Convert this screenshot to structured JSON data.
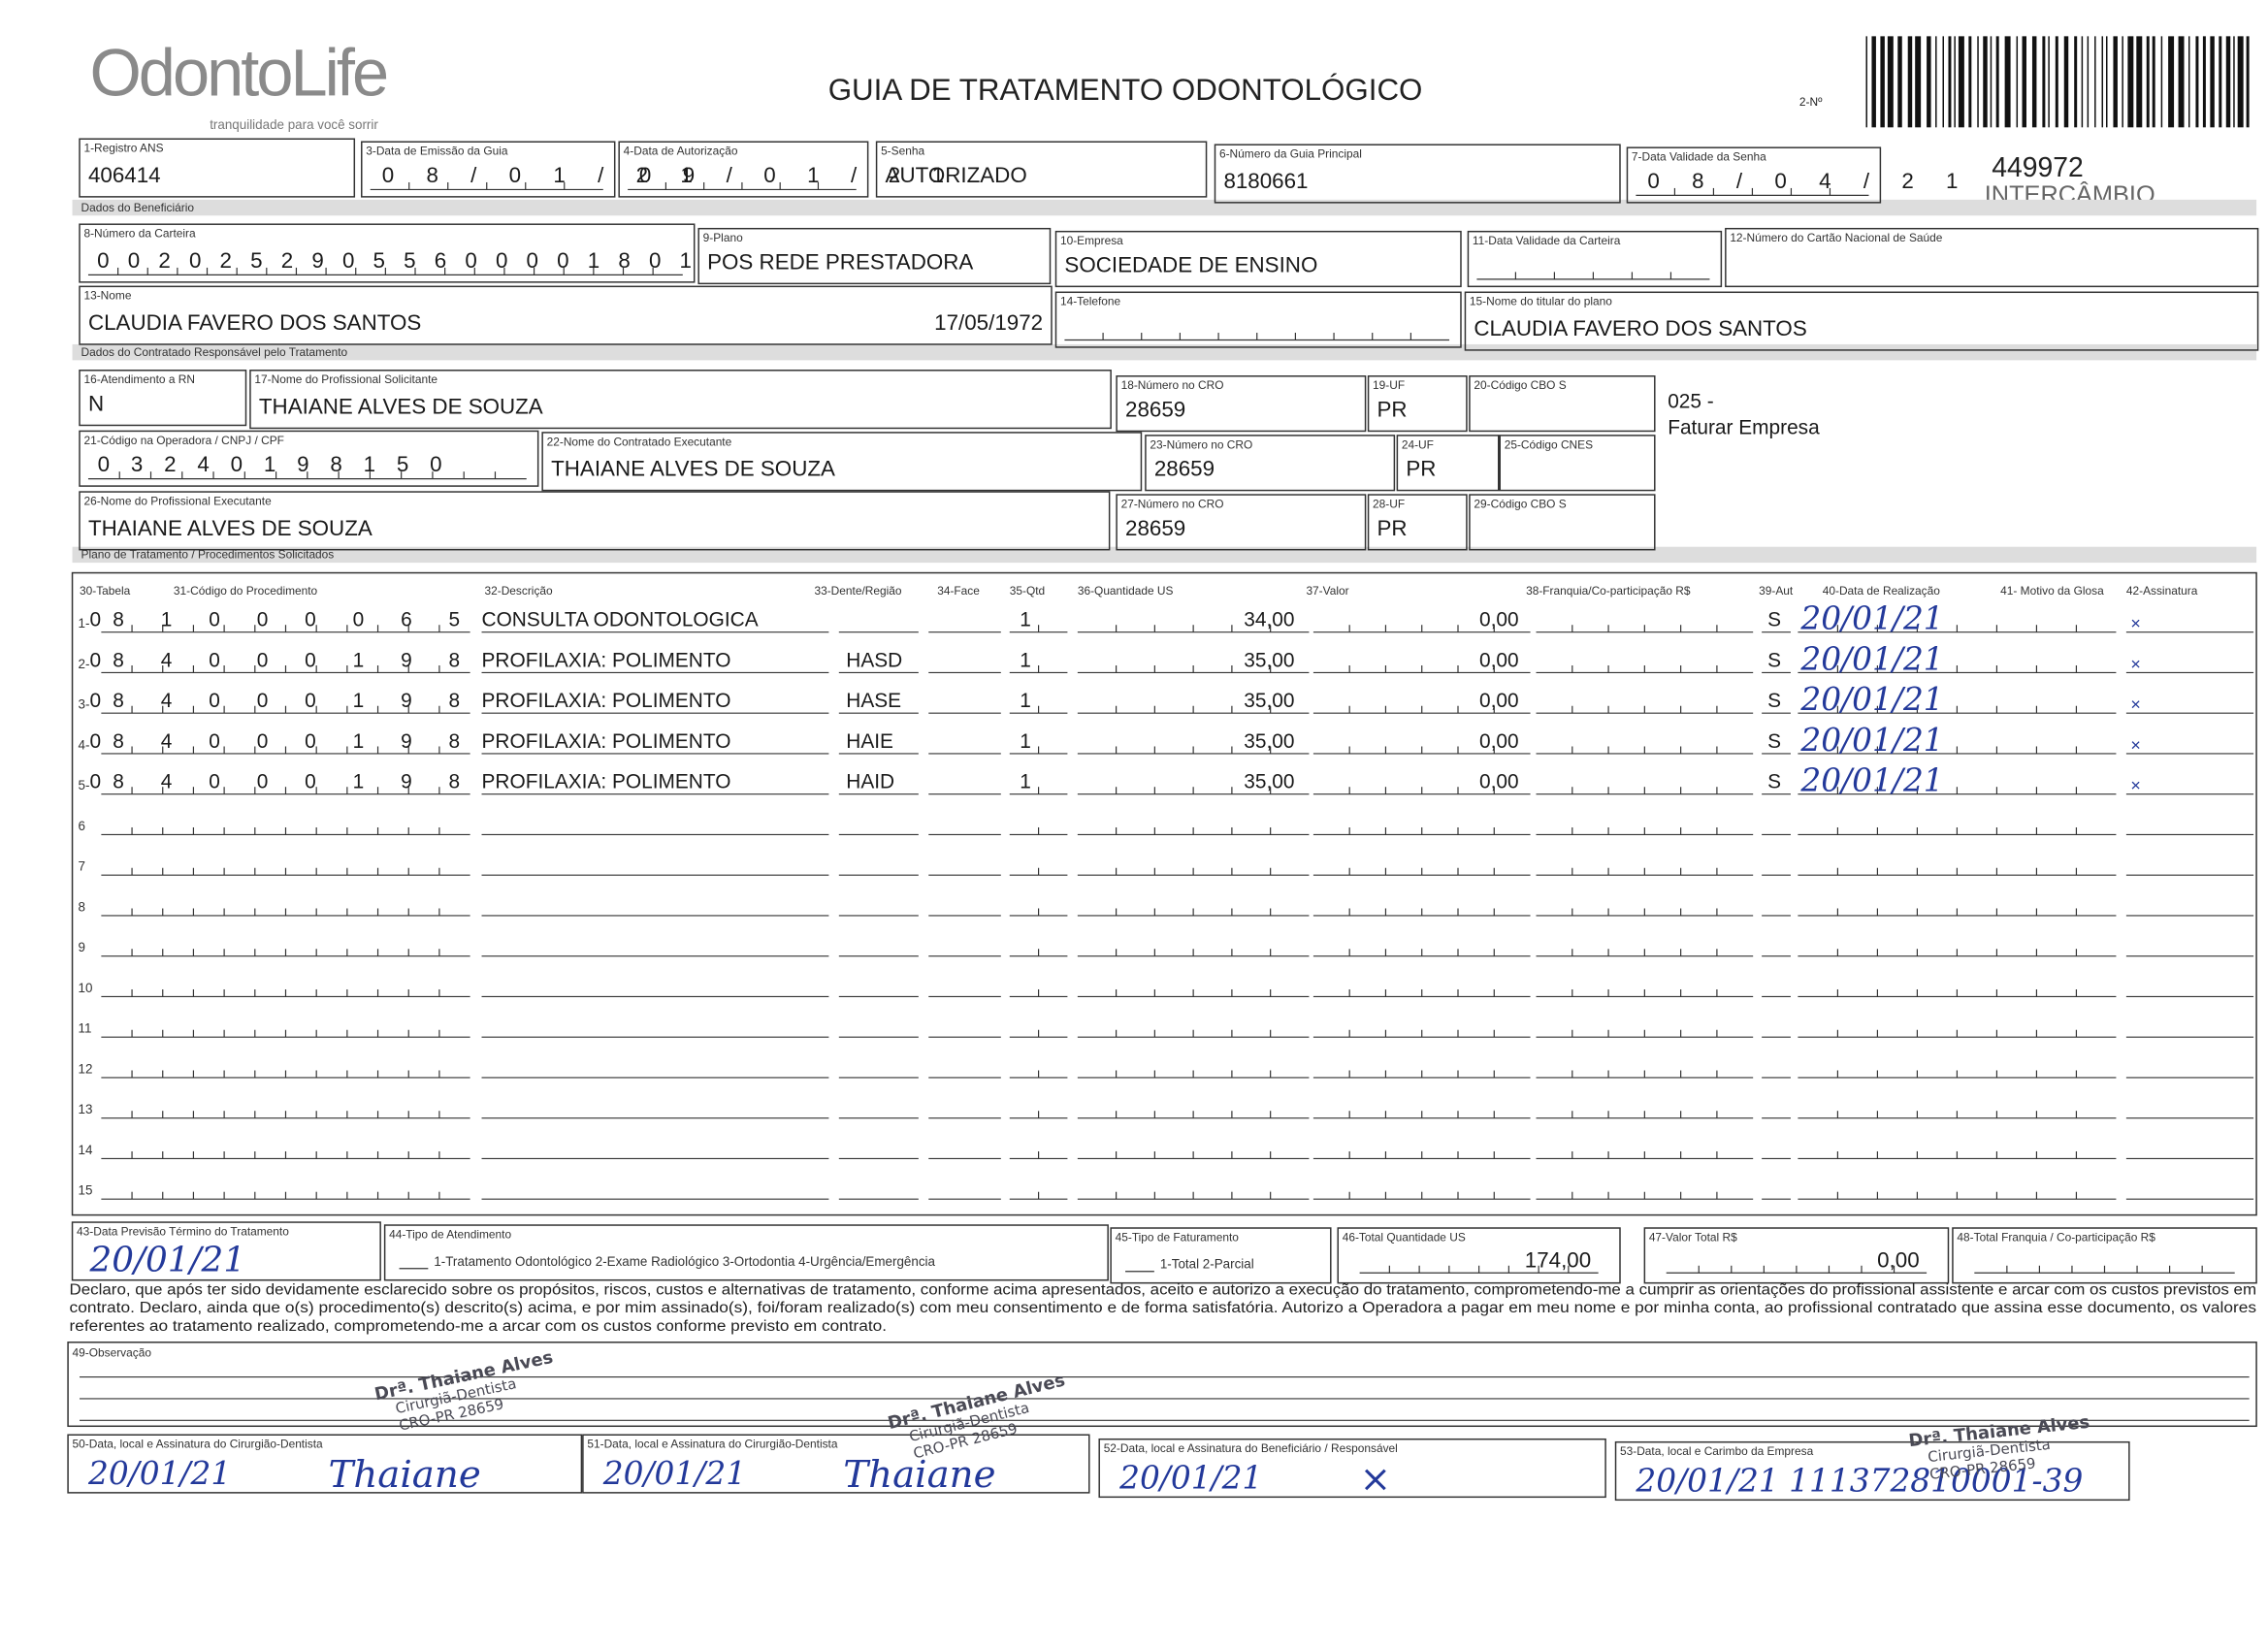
{
  "header": {
    "logo": "OdontoLife",
    "tagline": "tranquilidade para você sorrir",
    "title": "GUIA DE TRATAMENTO ODONTOLÓGICO",
    "number_label": "2-Nº",
    "guide_number": "449972",
    "exchange": "INTERCÂMBIO"
  },
  "sections": [
    "Dados do Beneficiário",
    "Dados do Contratado Responsável pelo Tratamento",
    "Plano de Tratamento / Procedimentos Solicitados"
  ],
  "fields": [
    {
      "label": "1-Registro ANS",
      "value": "406414"
    },
    {
      "label": "3-Data de Emissão da Guia",
      "value": "08/01/21"
    },
    {
      "label": "4-Data de Autorização",
      "value": "09/01/21"
    },
    {
      "label": "5-Senha",
      "value": "AUTORIZADO"
    },
    {
      "label": "6-Número da Guia Principal",
      "value": "8180661"
    },
    {
      "label": "7-Data Validade da Senha",
      "value": "08/04/21"
    },
    {
      "label": "8-Número da Carteira",
      "value": "00202529055600001801"
    },
    {
      "label": "9-Plano",
      "value": "POS REDE PRESTADORA"
    },
    {
      "label": "10-Empresa",
      "value": "SOCIEDADE DE ENSINO"
    },
    {
      "label": "11-Data Validade da Carteira"
    },
    {
      "label": "12-Número do Cartão Nacional de Saúde"
    },
    {
      "label": "13-Nome",
      "value": "CLAUDIA FAVERO DOS SANTOS",
      "birth_date": "17/05/1972"
    },
    {
      "label": "14-Telefone"
    },
    {
      "label": "15-Nome do titular do plano",
      "value": "CLAUDIA FAVERO DOS SANTOS"
    },
    {
      "label": "16-Atendimento a RN",
      "value": "N"
    },
    {
      "label": "17-Nome do Profissional Solicitante",
      "value": "THAIANE ALVES DE SOUZA"
    },
    {
      "label": "18-Número no CRO",
      "value": "28659"
    },
    {
      "label": "19-UF",
      "value": "PR"
    },
    {
      "label": "20-Código CBO S"
    },
    {
      "label": "21-Código na Operadora / CNPJ / CPF",
      "value": "03240198150"
    },
    {
      "label": "22-Nome do Contratado Executante",
      "value": "THAIANE ALVES DE SOUZA"
    },
    {
      "label": "23-Número no CRO",
      "value": "28659"
    },
    {
      "label": "24-UF",
      "value": "PR"
    },
    {
      "label": "25-Código CNES"
    },
    {
      "label": "26-Nome do Profissional Executante",
      "value": "THAIANE ALVES DE SOUZA"
    },
    {
      "label": "27-Número no CRO",
      "value": "28659"
    },
    {
      "label": "28-UF",
      "value": "PR"
    },
    {
      "label": "29-Código CBO S"
    }
  ],
  "side_note": [
    "025 -",
    "Faturar Empresa"
  ],
  "procedures": {
    "columns": [
      "30-Tabela",
      "31-Código do Procedimento",
      "32-Descrição",
      "33-Dente/Região",
      "34-Face",
      "35-Qtd",
      "36-Quantidade US",
      "37-Valor",
      "38-Franquia/Co-participação R$",
      "39-Aut",
      "40-Data de Realização",
      "41- Motivo da Glosa",
      "42-Assinatura"
    ],
    "rows": [
      {
        "number": "1-",
        "table": "0",
        "code": "81000065",
        "description": "CONSULTA ODONTOLOGICA",
        "qty": "1",
        "us": "34,00",
        "value": "0,00",
        "aut": "S",
        "date": "20/01/21",
        "signature": "×"
      },
      {
        "number": "2-",
        "table": "0",
        "code": "84000198",
        "description": "PROFILAXIA: POLIMENTO",
        "tooth": "HASD",
        "qty": "1",
        "us": "35,00",
        "value": "0,00",
        "aut": "S",
        "date": "20/01/21",
        "signature": "×"
      },
      {
        "number": "3-",
        "table": "0",
        "code": "84000198",
        "description": "PROFILAXIA: POLIMENTO",
        "tooth": "HASE",
        "qty": "1",
        "us": "35,00",
        "value": "0,00",
        "aut": "S",
        "date": "20/01/21",
        "signature": "×"
      },
      {
        "number": "4-",
        "table": "0",
        "code": "84000198",
        "description": "PROFILAXIA: POLIMENTO",
        "tooth": "HAIE",
        "qty": "1",
        "us": "35,00",
        "value": "0,00",
        "aut": "S",
        "date": "20/01/21",
        "signature": "×"
      },
      {
        "number": "5-",
        "table": "0",
        "code": "84000198",
        "description": "PROFILAXIA: POLIMENTO",
        "tooth": "HAID",
        "qty": "1",
        "us": "35,00",
        "value": "0,00",
        "aut": "S",
        "date": "20/01/21",
        "signature": "×"
      }
    ],
    "blank_rows": [
      "6",
      "7",
      "8",
      "9",
      "10",
      "11",
      "12",
      "13",
      "14",
      "15"
    ]
  },
  "totals": [
    {
      "label": "43-Data Previsão Término do Tratamento",
      "value": "20/01/21"
    },
    {
      "label": "44-Tipo de Atendimento",
      "options": "1-Tratamento Odontológico  2-Exame Radiológico  3-Ortodontia  4-Urgência/Emergência"
    },
    {
      "label": "45-Tipo de Faturamento",
      "options": "1-Total  2-Parcial"
    },
    {
      "label": "46-Total Quantidade US",
      "value": "174,00"
    },
    {
      "label": "47-Valor Total R$",
      "value": "0,00"
    },
    {
      "label": "48-Total Franquia / Co-participação R$"
    }
  ],
  "declaration": [
    "Declaro, que após ter sido devidamente esclarecido sobre os propósitos, riscos, custos e alternativas de tratamento, conforme acima apresentados, aceito e autorizo a execução do tratamento, comprometendo-me a cumprir as orientações do profissional assistente e arcar com os custos previstos em",
    "contrato. Declaro, ainda que o(s) procedimento(s) descrito(s) acima, e por mim assinado(s), foi/foram realizado(s) com meu consentimento e de forma satisfatória. Autorizo a Operadora a pagar em meu nome e por minha conta, ao profissional contratado que assina esse documento, os valores",
    "referentes ao tratamento realizado, comprometendo-me a arcar com os custos conforme previsto em contrato."
  ],
  "observation_label": "49-Observação",
  "signatures": [
    {
      "label": "50-Data, local e Assinatura do Cirurgião-Dentista",
      "value": "20/01/21",
      "signature": "Thaiane"
    },
    {
      "label": "51-Data, local e Assinatura do Cirurgião-Dentista",
      "value": "20/01/21",
      "signature": "Thaiane"
    },
    {
      "label": "52-Data, local e Assinatura do Beneficiário / Responsável",
      "value": "20/01/21",
      "signature": "×"
    },
    {
      "label": "53-Data, local e Carimbo da Empresa",
      "value": "20/01/21 111372810001-39"
    }
  ],
  "stamp": [
    "Drª. Thaiane Alves",
    "Cirurgiã-Dentista",
    "CRO-PR 28659"
  ]
}
